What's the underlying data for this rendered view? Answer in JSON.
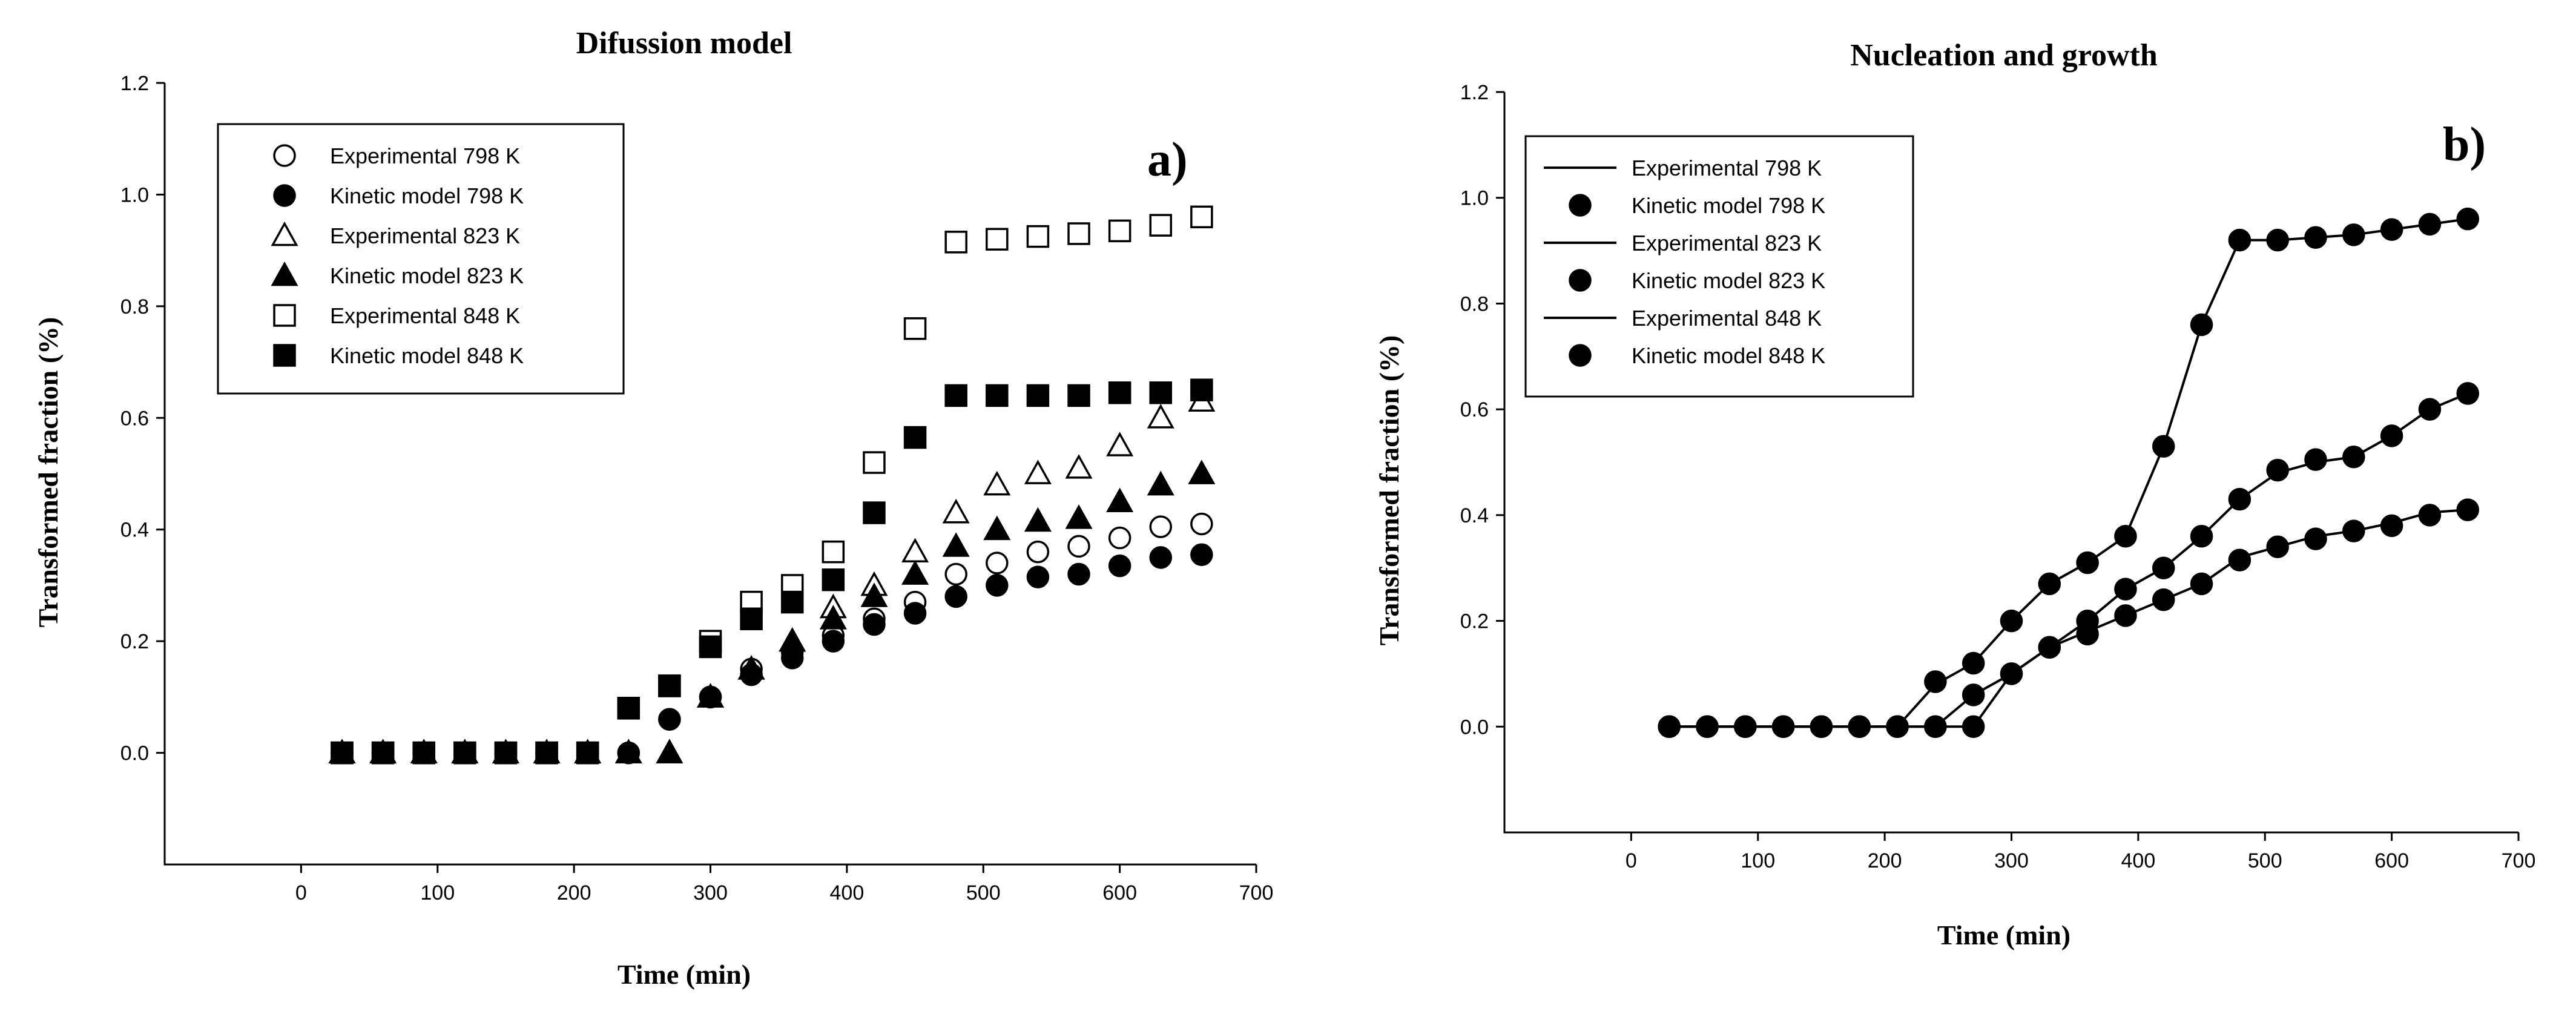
{
  "chart_data": [
    {
      "type": "scatter",
      "title": "Difussion model",
      "panel_label": "a)",
      "xlabel": "Time (min)",
      "ylabel": "Transformed fraction (%)",
      "xlim": [
        -100,
        700
      ],
      "ylim": [
        -0.2,
        1.2
      ],
      "xticks": [
        0,
        100,
        200,
        300,
        400,
        500,
        600,
        700
      ],
      "yticks": [
        0.0,
        0.2,
        0.4,
        0.6,
        0.8,
        1.0,
        1.2
      ],
      "legend": "top-left",
      "series": [
        {
          "name": "Experimental 798 K",
          "marker": "circle-open",
          "x": [
            30,
            60,
            90,
            120,
            150,
            180,
            210,
            240,
            270,
            300,
            330,
            360,
            390,
            420,
            450,
            480,
            510,
            540,
            570,
            600,
            630,
            660
          ],
          "y": [
            0,
            0,
            0,
            0,
            0,
            0,
            0,
            0,
            0.06,
            0.1,
            0.15,
            0.18,
            0.21,
            0.24,
            0.27,
            0.32,
            0.34,
            0.36,
            0.37,
            0.385,
            0.405,
            0.41
          ]
        },
        {
          "name": "Kinetic model 798 K",
          "marker": "circle-filled",
          "x": [
            30,
            60,
            90,
            120,
            150,
            180,
            210,
            240,
            270,
            300,
            330,
            360,
            390,
            420,
            450,
            480,
            510,
            540,
            570,
            600,
            630,
            660
          ],
          "y": [
            0,
            0,
            0,
            0,
            0,
            0,
            0,
            0,
            0.06,
            0.1,
            0.14,
            0.17,
            0.2,
            0.23,
            0.25,
            0.28,
            0.3,
            0.315,
            0.32,
            0.335,
            0.35,
            0.355
          ]
        },
        {
          "name": "Experimental 823 K",
          "marker": "triangle-open",
          "x": [
            30,
            60,
            90,
            120,
            150,
            180,
            210,
            240,
            270,
            300,
            330,
            360,
            390,
            420,
            450,
            480,
            510,
            540,
            570,
            600,
            630,
            660
          ],
          "y": [
            0,
            0,
            0,
            0,
            0,
            0,
            0,
            0,
            0,
            0.1,
            0.15,
            0.2,
            0.26,
            0.3,
            0.36,
            0.43,
            0.48,
            0.5,
            0.51,
            0.55,
            0.6,
            0.63
          ]
        },
        {
          "name": "Kinetic model 823 K",
          "marker": "triangle-filled",
          "x": [
            30,
            60,
            90,
            120,
            150,
            180,
            210,
            240,
            270,
            300,
            330,
            360,
            390,
            420,
            450,
            480,
            510,
            540,
            570,
            600,
            630,
            660
          ],
          "y": [
            0,
            0,
            0,
            0,
            0,
            0,
            0,
            0,
            0,
            0.1,
            0.15,
            0.2,
            0.24,
            0.28,
            0.32,
            0.37,
            0.4,
            0.415,
            0.42,
            0.45,
            0.48,
            0.5
          ]
        },
        {
          "name": "Experimental 848 K",
          "marker": "square-open",
          "x": [
            30,
            60,
            90,
            120,
            150,
            180,
            210,
            240,
            270,
            300,
            330,
            360,
            390,
            420,
            450,
            480,
            510,
            540,
            570,
            600,
            630,
            660
          ],
          "y": [
            0,
            0,
            0,
            0,
            0,
            0,
            0,
            0.08,
            0.12,
            0.2,
            0.27,
            0.3,
            0.36,
            0.52,
            0.76,
            0.915,
            0.92,
            0.925,
            0.93,
            0.935,
            0.945,
            0.96
          ]
        },
        {
          "name": "Kinetic model 848 K",
          "marker": "square-filled",
          "x": [
            30,
            60,
            90,
            120,
            150,
            180,
            210,
            240,
            270,
            300,
            330,
            360,
            390,
            420,
            450,
            480,
            510,
            540,
            570,
            600,
            630,
            660
          ],
          "y": [
            0,
            0,
            0,
            0,
            0,
            0,
            0,
            0.08,
            0.12,
            0.19,
            0.24,
            0.27,
            0.31,
            0.43,
            0.565,
            0.64,
            0.64,
            0.64,
            0.64,
            0.645,
            0.645,
            0.65
          ]
        }
      ]
    },
    {
      "type": "line",
      "title": "Nucleation and growth",
      "panel_label": "b)",
      "xlabel": "Time (min)",
      "ylabel": "Transformed fraction (%)",
      "xlim": [
        -100,
        700
      ],
      "ylim": [
        -0.2,
        1.2
      ],
      "xticks": [
        0,
        100,
        200,
        300,
        400,
        500,
        600,
        700
      ],
      "yticks": [
        0.0,
        0.2,
        0.4,
        0.6,
        0.8,
        1.0,
        1.2
      ],
      "legend": "top-left",
      "series": [
        {
          "name": "Experimental 798 K",
          "marker": "line",
          "x": [
            30,
            60,
            90,
            120,
            150,
            180,
            210,
            240,
            270,
            300,
            330,
            360,
            390,
            420,
            450,
            480,
            510,
            540,
            570,
            600,
            630,
            660
          ],
          "y": [
            0,
            0,
            0,
            0,
            0,
            0,
            0,
            0,
            0,
            0.1,
            0.15,
            0.18,
            0.21,
            0.24,
            0.27,
            0.32,
            0.34,
            0.36,
            0.37,
            0.385,
            0.405,
            0.41
          ]
        },
        {
          "name": "Kinetic model 798 K",
          "marker": "circle-filled",
          "x": [
            30,
            60,
            90,
            120,
            150,
            180,
            210,
            240,
            270,
            300,
            330,
            360,
            390,
            420,
            450,
            480,
            510,
            540,
            570,
            600,
            630,
            660
          ],
          "y": [
            0,
            0,
            0,
            0,
            0,
            0,
            0,
            0,
            0,
            0.1,
            0.15,
            0.175,
            0.21,
            0.24,
            0.27,
            0.315,
            0.34,
            0.355,
            0.37,
            0.38,
            0.4,
            0.41
          ]
        },
        {
          "name": "Experimental 823 K",
          "marker": "line",
          "x": [
            30,
            60,
            90,
            120,
            150,
            180,
            210,
            240,
            270,
            300,
            330,
            360,
            390,
            420,
            450,
            480,
            510,
            540,
            570,
            600,
            630,
            660
          ],
          "y": [
            0,
            0,
            0,
            0,
            0,
            0,
            0,
            0,
            0.06,
            0.1,
            0.15,
            0.2,
            0.26,
            0.3,
            0.36,
            0.43,
            0.48,
            0.5,
            0.51,
            0.55,
            0.6,
            0.63
          ]
        },
        {
          "name": "Kinetic model 823 K",
          "marker": "circle-filled",
          "x": [
            30,
            60,
            90,
            120,
            150,
            180,
            210,
            240,
            270,
            300,
            330,
            360,
            390,
            420,
            450,
            480,
            510,
            540,
            570,
            600,
            630,
            660
          ],
          "y": [
            0,
            0,
            0,
            0,
            0,
            0,
            0,
            0,
            0.06,
            0.1,
            0.15,
            0.2,
            0.26,
            0.3,
            0.36,
            0.43,
            0.485,
            0.505,
            0.51,
            0.55,
            0.6,
            0.63
          ]
        },
        {
          "name": "Experimental 848 K",
          "marker": "line",
          "x": [
            30,
            60,
            90,
            120,
            150,
            180,
            210,
            240,
            270,
            300,
            330,
            360,
            390,
            420,
            450,
            480,
            510,
            540,
            570,
            600,
            630,
            660
          ],
          "y": [
            0,
            0,
            0,
            0,
            0,
            0,
            0,
            0.08,
            0.12,
            0.2,
            0.27,
            0.31,
            0.36,
            0.53,
            0.76,
            0.92,
            0.92,
            0.925,
            0.93,
            0.94,
            0.95,
            0.96
          ]
        },
        {
          "name": "Kinetic model 848 K",
          "marker": "circle-filled",
          "x": [
            30,
            60,
            90,
            120,
            150,
            180,
            210,
            240,
            270,
            300,
            330,
            360,
            390,
            420,
            450,
            480,
            510,
            540,
            570,
            600,
            630,
            660
          ],
          "y": [
            0,
            0,
            0,
            0,
            0,
            0,
            0,
            0.085,
            0.12,
            0.2,
            0.27,
            0.31,
            0.36,
            0.53,
            0.76,
            0.92,
            0.92,
            0.925,
            0.93,
            0.94,
            0.95,
            0.96
          ]
        }
      ]
    }
  ]
}
